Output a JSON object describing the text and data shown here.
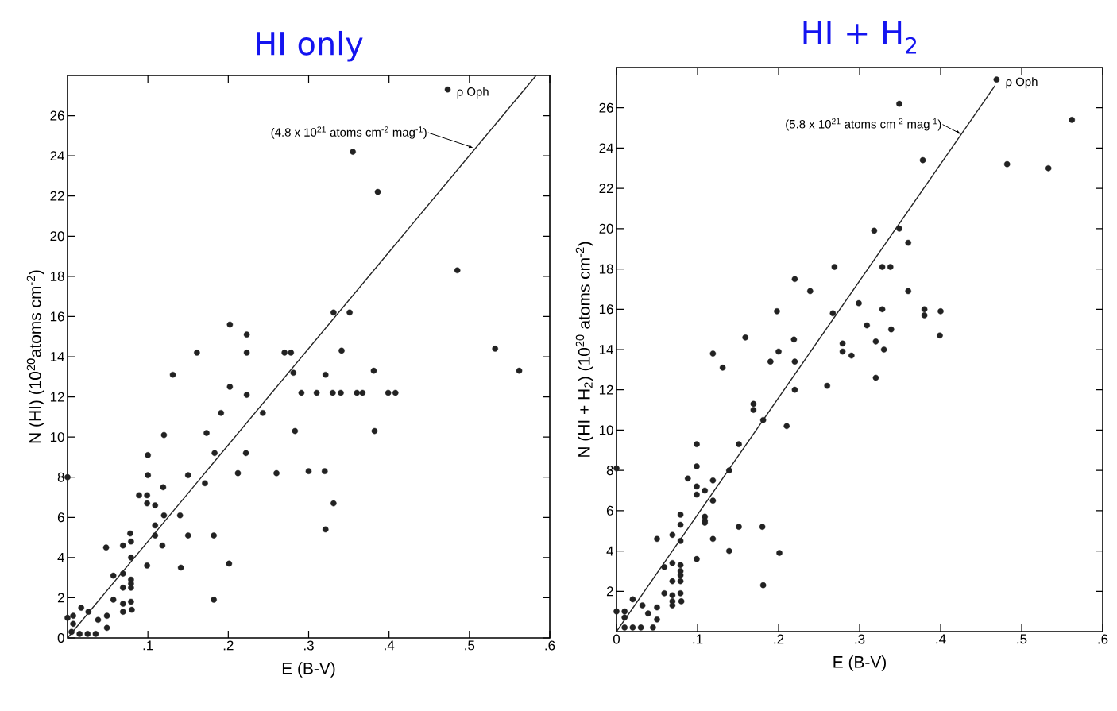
{
  "chart_data": [
    {
      "type": "scatter",
      "title": "HI only",
      "xlabel": "E (B-V)",
      "ylabel": "N (HI) (10$^{20}$atoms cm$^{-2}$)",
      "xlim": [
        0,
        0.6
      ],
      "ylim": [
        0,
        28
      ],
      "xticks": [
        {
          "value": 0.1,
          "label": ".1"
        },
        {
          "value": 0.2,
          "label": ".2"
        },
        {
          "value": 0.3,
          "label": ".3"
        },
        {
          "value": 0.4,
          "label": ".4"
        },
        {
          "value": 0.5,
          "label": ".5"
        },
        {
          "value": 0.6,
          "label": ".6"
        }
      ],
      "yticks": [
        0,
        2,
        4,
        6,
        8,
        10,
        12,
        14,
        16,
        18,
        20,
        22,
        24,
        26
      ],
      "annotations": [
        {
          "text": "(4.8 x 10$^{21}$ atoms cm$^{-2}$ mag$^{-1}$)",
          "x": 0.505,
          "y": 24.4
        },
        {
          "text": "ρ Oph",
          "x": 0.473,
          "y": 27.3
        }
      ],
      "series": [
        {
          "marker": "circle",
          "color": "#222222",
          "x": [
            0.331,
            0.351,
            0.202,
            0.223,
            0.161,
            0.223,
            0.27,
            0.278,
            0.341,
            0.131,
            0.281,
            0.321,
            0.381,
            0.202,
            0.223,
            0.291,
            0.31,
            0.33,
            0.34,
            0.36,
            0.367,
            0.399,
            0.408,
            0.243,
            0.191,
            0.12,
            0.173,
            0.283,
            0.382,
            0.1,
            0.183,
            0.222,
            0.1,
            0.15,
            0.212,
            0.26,
            0.3,
            0.32,
            0.171,
            0.119,
            0.089,
            0.099,
            0.099,
            0.109,
            0.331,
            0.12,
            0.14,
            0.109,
            0.321,
            0.078,
            0.079,
            0.15,
            0.182,
            0.109,
            0.048,
            0.069,
            0.118,
            0.079,
            0.099,
            0.141,
            0.057,
            0.069,
            0.079,
            0.079,
            0.079,
            0.069,
            0.057,
            0.069,
            0.079,
            0.069,
            0.026,
            0.007,
            0.049,
            0.038,
            0.049,
            0,
            0.007,
            0.005,
            0.015,
            0.025,
            0.035,
            0.017,
            0.08,
            0.182,
            0.201,
            0,
            0.355,
            0.386,
            0.485,
            0.473,
            0.532,
            0.562
          ],
          "values": [
            16.2,
            16.2,
            15.6,
            15.1,
            14.2,
            14.2,
            14.2,
            14.2,
            14.3,
            13.1,
            13.2,
            13.1,
            13.3,
            12.5,
            12.1,
            12.2,
            12.2,
            12.2,
            12.2,
            12.2,
            12.2,
            12.2,
            12.2,
            11.2,
            11.2,
            10.1,
            10.2,
            10.3,
            10.3,
            9.1,
            9.2,
            9.2,
            8.1,
            8.1,
            8.2,
            8.2,
            8.3,
            8.3,
            7.7,
            7.5,
            7.1,
            7.1,
            6.7,
            6.6,
            6.7,
            6.1,
            6.1,
            5.6,
            5.4,
            5.2,
            4.8,
            5.1,
            5.1,
            5.1,
            4.5,
            4.6,
            4.6,
            4,
            3.6,
            3.5,
            3.1,
            3.2,
            2.9,
            2.7,
            2.5,
            2.5,
            1.9,
            1.7,
            1.8,
            1.3,
            1.3,
            1.1,
            1.1,
            0.9,
            0.5,
            1,
            0.7,
            0.3,
            0.2,
            0.2,
            0.2,
            1.5,
            1.4,
            1.9,
            3.7,
            8,
            24.2,
            22.2,
            18.3,
            27.3,
            14.4,
            13.3
          ]
        },
        {
          "type": "line",
          "marker": "none",
          "color": "#222222",
          "line_style": "solid",
          "x": [
            0,
            0.583
          ],
          "values": [
            0,
            28
          ]
        }
      ]
    },
    {
      "type": "scatter",
      "title": "HI + H$_{2}$",
      "xlabel": "E (B-V)",
      "ylabel": "N (HI + H$_{2}$) (10$^{20}$ atoms cm$^{-2}$)",
      "xlim": [
        0,
        0.6
      ],
      "ylim": [
        0,
        28
      ],
      "xticks": [
        {
          "value": 0,
          "label": "0"
        },
        {
          "value": 0.1,
          "label": ".1"
        },
        {
          "value": 0.2,
          "label": ".2"
        },
        {
          "value": 0.3,
          "label": ".3"
        },
        {
          "value": 0.4,
          "label": ".4"
        },
        {
          "value": 0.5,
          "label": ".5"
        },
        {
          "value": 0.6,
          "label": ".6"
        }
      ],
      "yticks": [
        2,
        4,
        6,
        8,
        10,
        12,
        14,
        16,
        18,
        20,
        22,
        24,
        26
      ],
      "annotations": [
        {
          "text": "(5.8 x 10$^{21}$ atoms cm$^{-2}$ mag$^{-1}$)",
          "x": 0.425,
          "y": 24.7
        },
        {
          "text": "ρ Oph",
          "x": 0.469,
          "y": 27.4
        }
      ],
      "series": [
        {
          "marker": "circle",
          "color": "#222222",
          "x": [
            0.159,
            0.219,
            0.119,
            0.2,
            0.131,
            0.19,
            0.22,
            0.26,
            0.22,
            0.169,
            0.169,
            0.181,
            0.21,
            0.099,
            0.151,
            0.099,
            0.139,
            0.088,
            0.119,
            0.099,
            0.109,
            0.099,
            0.119,
            0.079,
            0.079,
            0.109,
            0.109,
            0.109,
            0.151,
            0.18,
            0.069,
            0.079,
            0.05,
            0.119,
            0.139,
            0.099,
            0.059,
            0.069,
            0.079,
            0.079,
            0.079,
            0.069,
            0.079,
            0.059,
            0.069,
            0.069,
            0.069,
            0.079,
            0.032,
            0.039,
            0.05,
            0.05,
            0,
            0.01,
            0.01,
            0.01,
            0.02,
            0.03,
            0.045,
            0.02,
            0.08,
            0.181,
            0.201,
            0,
            0.198,
            0.267,
            0.299,
            0.328,
            0.309,
            0.339,
            0.279,
            0.279,
            0.29,
            0.32,
            0.33,
            0.32,
            0.38,
            0.38,
            0.4,
            0.399,
            0.349,
            0.562,
            0.378,
            0.482,
            0.533,
            0.318,
            0.349,
            0.36,
            0.269,
            0.328,
            0.338,
            0.239,
            0.22,
            0.36,
            0.469
          ],
          "values": [
            14.6,
            14.5,
            13.8,
            13.9,
            13.1,
            13.4,
            13.4,
            12.2,
            12,
            11.3,
            11,
            10.5,
            10.2,
            9.3,
            9.3,
            8.2,
            8,
            7.6,
            7.5,
            7.2,
            7,
            6.8,
            6.5,
            5.8,
            5.3,
            5.7,
            5.5,
            5.4,
            5.2,
            5.2,
            4.8,
            4.5,
            4.6,
            4.6,
            4,
            3.6,
            3.2,
            3.4,
            3.3,
            3,
            2.8,
            2.5,
            2.5,
            1.9,
            1.8,
            1.5,
            1.3,
            1.9,
            1.3,
            0.9,
            1.2,
            0.6,
            1,
            1,
            0.7,
            0.2,
            0.2,
            0.2,
            0.2,
            1.6,
            1.5,
            2.3,
            3.9,
            8.1,
            15.9,
            15.8,
            16.3,
            16,
            15.2,
            15,
            14.3,
            13.9,
            13.7,
            14.4,
            14,
            12.6,
            16,
            15.7,
            15.9,
            14.7,
            26.2,
            25.4,
            23.4,
            23.2,
            23,
            19.9,
            20,
            19.3,
            18.1,
            18.1,
            18.1,
            16.9,
            17.5,
            16.9,
            27.4
          ]
        },
        {
          "type": "line",
          "marker": "none",
          "color": "#222222",
          "line_style": "solid",
          "x": [
            0,
            0.467
          ],
          "values": [
            0,
            27.1
          ]
        }
      ]
    }
  ]
}
